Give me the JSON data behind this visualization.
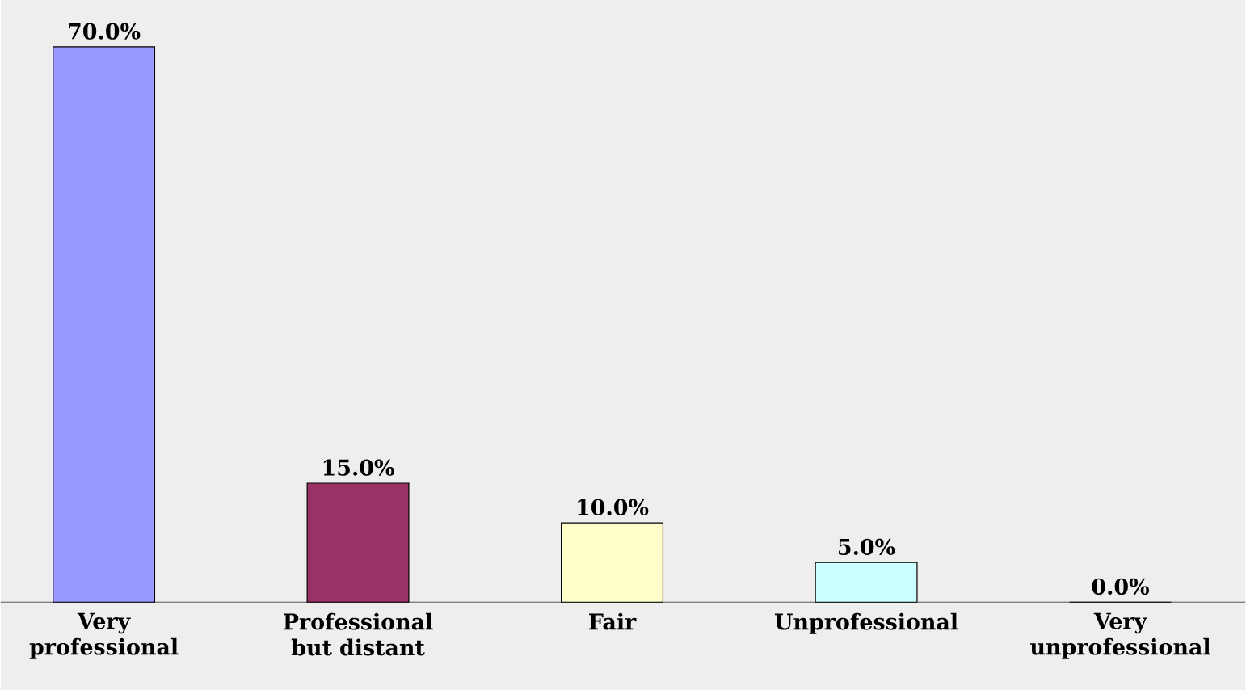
{
  "chart_data": {
    "type": "bar",
    "categories": [
      "Very professional",
      "Professional but distant",
      "Fair",
      "Unprofessional",
      "Very unprofessional"
    ],
    "values": [
      70.0,
      15.0,
      10.0,
      5.0,
      0.0
    ],
    "colors": [
      "#9999ff",
      "#993366",
      "#ffffcc",
      "#ccffff",
      "#ffffff"
    ],
    "value_labels": [
      "70.0%",
      "15.0%",
      "10.0%",
      "5.0%",
      "0.0%"
    ]
  }
}
